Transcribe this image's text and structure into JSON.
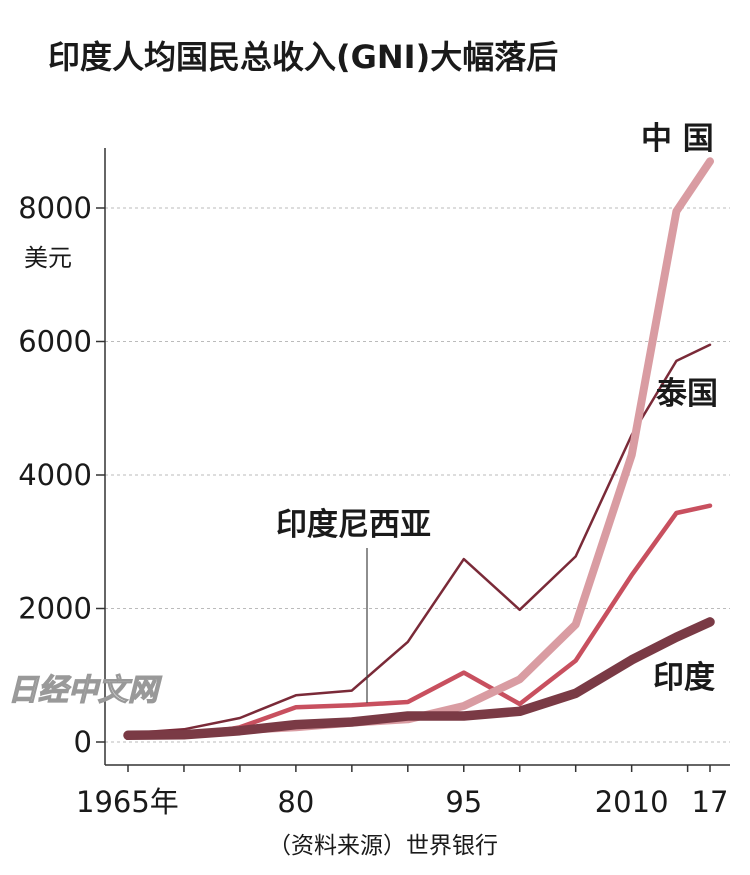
{
  "chart_data": {
    "type": "line",
    "title": "印度人均国民总收入(GNI)大幅落后",
    "y_unit": "美元",
    "ylim": [
      0,
      9000
    ],
    "y_ticks": [
      0,
      2000,
      4000,
      6000,
      8000
    ],
    "x_ticks": [
      {
        "value": 1965,
        "label": "1965年"
      },
      {
        "value": 1980,
        "label": "80"
      },
      {
        "value": 1995,
        "label": "95"
      },
      {
        "value": 2010,
        "label": "2010"
      },
      {
        "value": 2017,
        "label": "17"
      }
    ],
    "x": [
      1965,
      1970,
      1975,
      1980,
      1985,
      1990,
      1995,
      2000,
      2005,
      2010,
      2014,
      2017
    ],
    "series": [
      {
        "name": "中 国",
        "color": "#d99ca2",
        "values": [
          100,
          110,
          180,
          220,
          290,
          340,
          540,
          940,
          1760,
          4300,
          7950,
          8700
        ]
      },
      {
        "name": "泰国",
        "color": "#7a2a38",
        "values": [
          130,
          190,
          360,
          700,
          770,
          1500,
          2740,
          1980,
          2780,
          4600,
          5710,
          5950
        ]
      },
      {
        "name": "印度尼西亚",
        "color": "#c8505f",
        "values": [
          90,
          80,
          220,
          520,
          550,
          600,
          1040,
          570,
          1220,
          2500,
          3430,
          3540
        ]
      },
      {
        "name": "印度",
        "color": "#7a3a45",
        "values": [
          100,
          110,
          170,
          260,
          300,
          390,
          390,
          460,
          730,
          1230,
          1570,
          1800
        ]
      }
    ],
    "watermark": "日经中文网",
    "source": "（资料来源）世界银行"
  }
}
